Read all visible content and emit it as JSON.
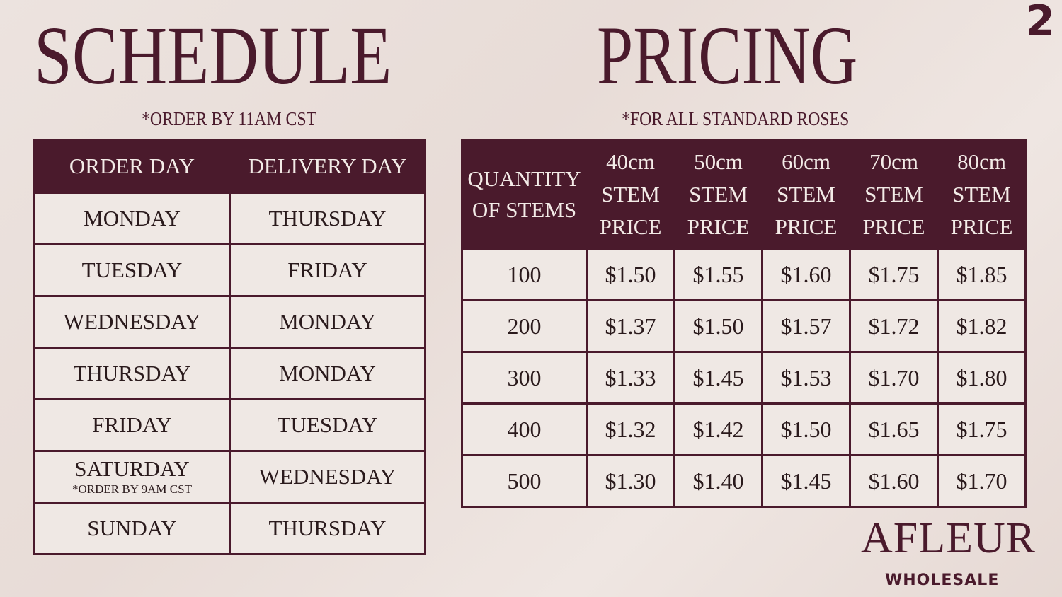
{
  "page_number": "2",
  "schedule": {
    "title": "SCHEDULE",
    "subtitle": "*ORDER BY 11AM CST",
    "headers": [
      "ORDER DAY",
      "DELIVERY DAY"
    ],
    "rows": [
      {
        "order": "MONDAY",
        "delivery": "THURSDAY",
        "note": ""
      },
      {
        "order": "TUESDAY",
        "delivery": "FRIDAY",
        "note": ""
      },
      {
        "order": "WEDNESDAY",
        "delivery": "MONDAY",
        "note": ""
      },
      {
        "order": "THURSDAY",
        "delivery": "MONDAY",
        "note": ""
      },
      {
        "order": "FRIDAY",
        "delivery": "TUESDAY",
        "note": ""
      },
      {
        "order": "SATURDAY",
        "delivery": "WEDNESDAY",
        "note": "*ORDER BY 9AM CST"
      },
      {
        "order": "SUNDAY",
        "delivery": "THURSDAY",
        "note": ""
      }
    ]
  },
  "pricing": {
    "title": "PRICING",
    "subtitle": "*FOR  ALL STANDARD ROSES",
    "qty_header": [
      "QUANTITY",
      "OF STEMS"
    ],
    "columns": [
      [
        "40cm",
        "STEM",
        "PRICE"
      ],
      [
        "50cm",
        "STEM",
        "PRICE"
      ],
      [
        "60cm",
        "STEM",
        "PRICE"
      ],
      [
        "70cm",
        "STEM",
        "PRICE"
      ],
      [
        "80cm",
        "STEM",
        "PRICE"
      ]
    ],
    "rows": [
      {
        "qty": "100",
        "prices": [
          "$1.50",
          "$1.55",
          "$1.60",
          "$1.75",
          "$1.85"
        ]
      },
      {
        "qty": "200",
        "prices": [
          "$1.37",
          "$1.50",
          "$1.57",
          "$1.72",
          "$1.82"
        ]
      },
      {
        "qty": "300",
        "prices": [
          "$1.33",
          "$1.45",
          "$1.53",
          "$1.70",
          "$1.80"
        ]
      },
      {
        "qty": "400",
        "prices": [
          "$1.32",
          "$1.42",
          "$1.50",
          "$1.65",
          "$1.75"
        ]
      },
      {
        "qty": "500",
        "prices": [
          "$1.30",
          "$1.40",
          "$1.45",
          "$1.60",
          "$1.70"
        ]
      }
    ]
  },
  "logo": {
    "brand": "AFLEUR",
    "tagline": "WHOLESALE"
  },
  "colors": {
    "accent": "#4a1a2c",
    "cell": "#efe8e4",
    "background": "#eadfda"
  }
}
